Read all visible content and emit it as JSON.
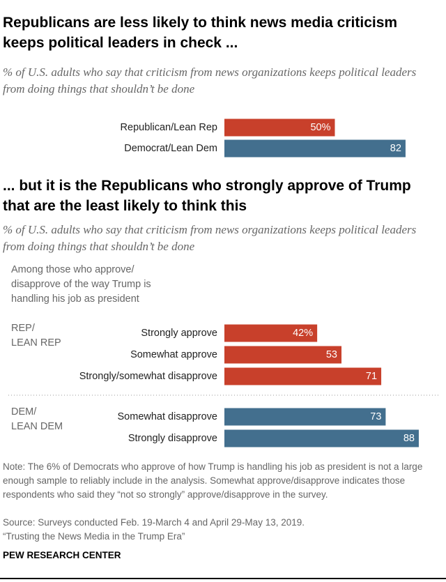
{
  "chart_data": [
    {
      "type": "bar",
      "title": "Republicans are less likely to think news media criticism keeps political leaders in check ...",
      "subtitle": "% of U.S. adults who say that criticism from news organizations keeps political leaders from doing things that shouldn’t be done",
      "groups": [
        {
          "color": "#c8402b",
          "categories": [
            "Republican/Lean Rep"
          ],
          "values": [
            50
          ],
          "value_labels": [
            "50%"
          ]
        },
        {
          "color": "#436f8e",
          "categories": [
            "Democrat/Lean Dem"
          ],
          "values": [
            82
          ],
          "value_labels": [
            "82"
          ]
        }
      ]
    },
    {
      "type": "bar",
      "title": "... but it is the Republicans who strongly approve of Trump that are the least likely to think this",
      "subtitle": "% of U.S. adults who say that criticism from news organizations keeps political leaders from doing things that shouldn’t be done",
      "intro": "Among those who approve/ disapprove of the way Trump is handling his job as president",
      "groups": [
        {
          "name_lines": [
            "REP/",
            "LEAN REP"
          ],
          "color": "#c8402b",
          "categories": [
            "Strongly approve",
            "Somewhat approve",
            "Strongly/somewhat disapprove"
          ],
          "values": [
            42,
            53,
            71
          ],
          "value_labels": [
            "42%",
            "53",
            "71"
          ]
        },
        {
          "name_lines": [
            "DEM/",
            "LEAN DEM"
          ],
          "color": "#436f8e",
          "categories": [
            "Somewhat disapprove",
            "Strongly disapprove"
          ],
          "values": [
            73,
            88
          ],
          "value_labels": [
            "73",
            "88"
          ]
        }
      ]
    }
  ],
  "footer": {
    "note": "Note: The 6% of Democrats who approve of how Trump is handling his job as president is not a large enough sample to reliably include in the analysis. Somewhat approve/disapprove indicates those respondents who said they “not so strongly” approve/disapprove in the survey.",
    "source": "Source: Surveys conducted Feb. 19-March 4 and April 29-May 13, 2019.",
    "report": "“Trusting the News Media in the Trump Era”",
    "credit": "PEW RESEARCH CENTER"
  }
}
